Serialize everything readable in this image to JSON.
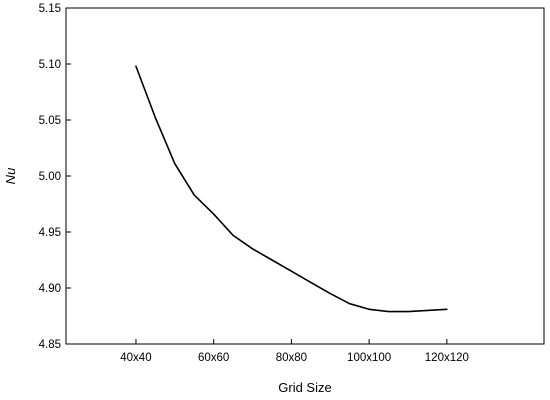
{
  "chart_data": {
    "type": "line",
    "title": "",
    "xlabel": "Grid Size",
    "ylabel": "Nu",
    "categories": [
      "40x40",
      "60x60",
      "80x80",
      "100x100",
      "120x120"
    ],
    "x_positions": [
      1,
      2,
      3,
      4,
      5
    ],
    "xlim": [
      0.1,
      6.25
    ],
    "ylim": [
      4.85,
      5.15
    ],
    "yticks": [
      "4.85",
      "4.90",
      "4.95",
      "5.00",
      "5.05",
      "5.10",
      "5.15"
    ],
    "grid": false,
    "legend": "none",
    "series": [
      {
        "color": "#000000",
        "points": [
          {
            "x": 1.0,
            "y": 5.098
          },
          {
            "x": 1.25,
            "y": 5.052
          },
          {
            "x": 1.5,
            "y": 5.011
          },
          {
            "x": 1.75,
            "y": 4.983
          },
          {
            "x": 2.0,
            "y": 4.966
          },
          {
            "x": 2.25,
            "y": 4.947
          },
          {
            "x": 2.5,
            "y": 4.935
          },
          {
            "x": 2.75,
            "y": 4.925
          },
          {
            "x": 3.0,
            "y": 4.915
          },
          {
            "x": 3.25,
            "y": 4.905
          },
          {
            "x": 3.5,
            "y": 4.895
          },
          {
            "x": 3.75,
            "y": 4.886
          },
          {
            "x": 4.0,
            "y": 4.881
          },
          {
            "x": 4.25,
            "y": 4.879
          },
          {
            "x": 4.5,
            "y": 4.879
          },
          {
            "x": 4.75,
            "y": 4.88
          },
          {
            "x": 5.0,
            "y": 4.881
          }
        ]
      }
    ]
  }
}
